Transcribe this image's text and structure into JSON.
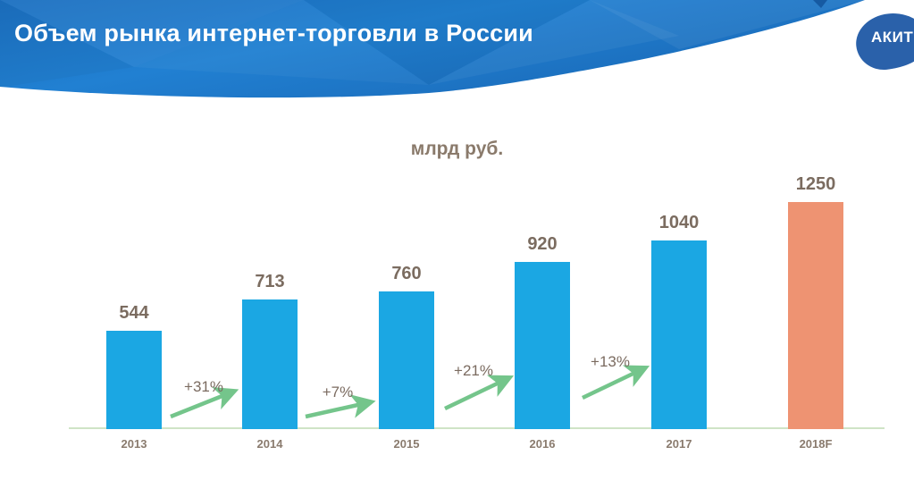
{
  "header": {
    "title": "Объем рынка интернет-торговли в России",
    "logo_text": "АКИТ"
  },
  "chart_data": {
    "type": "bar",
    "title": "млрд руб.",
    "xlabel": "",
    "ylabel": "млрд руб.",
    "categories": [
      "2013",
      "2014",
      "2015",
      "2016",
      "2017",
      "2018F"
    ],
    "values": [
      544,
      713,
      760,
      920,
      1040,
      1250
    ],
    "bar_colors": [
      "#1ba7e3",
      "#1ba7e3",
      "#1ba7e3",
      "#1ba7e3",
      "#1ba7e3",
      "#ee9372"
    ],
    "ylim": [
      0,
      1320
    ],
    "grid": "off",
    "legend": "none",
    "growth_annotations": [
      {
        "label": "+31%",
        "from": "2013",
        "to": "2014"
      },
      {
        "label": "+7%",
        "from": "2014",
        "to": "2015"
      },
      {
        "label": "+21%",
        "from": "2015",
        "to": "2016"
      },
      {
        "label": "+13%",
        "from": "2016",
        "to": "2017"
      }
    ]
  },
  "colors": {
    "banner_blue": "#1b72c4",
    "bar_blue": "#1ba7e3",
    "bar_orange": "#ee9372",
    "arrow_green": "#74c58b",
    "label_brown": "#7b6c60",
    "axis_green": "#cfe4c6",
    "logo_blue": "#2a61aa"
  }
}
